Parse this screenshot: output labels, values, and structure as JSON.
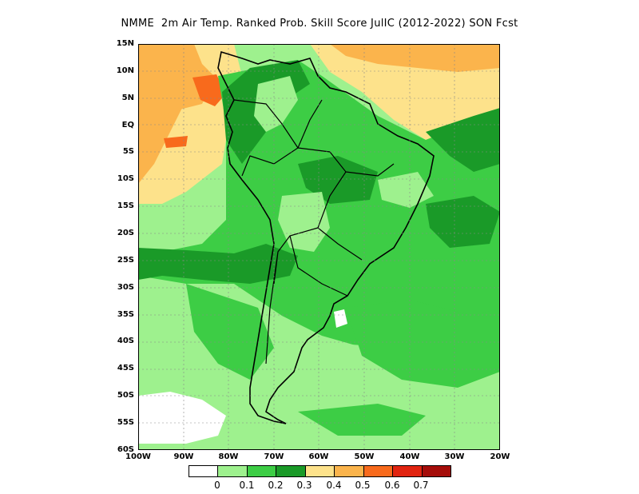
{
  "title": "NMME  2m Air Temp. Ranked Prob. Skill Score JulIC (2012-2022) SON Fcst",
  "y_axis_labels": [
    "15N",
    "10N",
    "5N",
    "EQ",
    "5S",
    "10S",
    "15S",
    "20S",
    "25S",
    "30S",
    "35S",
    "40S",
    "45S",
    "50S",
    "55S",
    "60S"
  ],
  "x_axis_labels": [
    "100W",
    "90W",
    "80W",
    "70W",
    "60W",
    "50W",
    "40W",
    "30W",
    "20W"
  ],
  "legend": {
    "labels": [
      "0",
      "0.1",
      "0.2",
      "0.3",
      "0.4",
      "0.5",
      "0.6",
      "0.7"
    ],
    "colors": [
      "#ffffff",
      "#9ef18e",
      "#3dcd45",
      "#1a9a28",
      "#fde28b",
      "#fbb44c",
      "#f86a1c",
      "#e12410",
      "#a50d0a"
    ]
  },
  "colors": {
    "light_green": "#9ef18e",
    "mid_green": "#3dcd45",
    "dark_green": "#1a9a28",
    "light_yellow": "#fde28b",
    "orange_yellow": "#fbb44c",
    "orange": "#f86a1c",
    "red": "#e12410"
  }
}
